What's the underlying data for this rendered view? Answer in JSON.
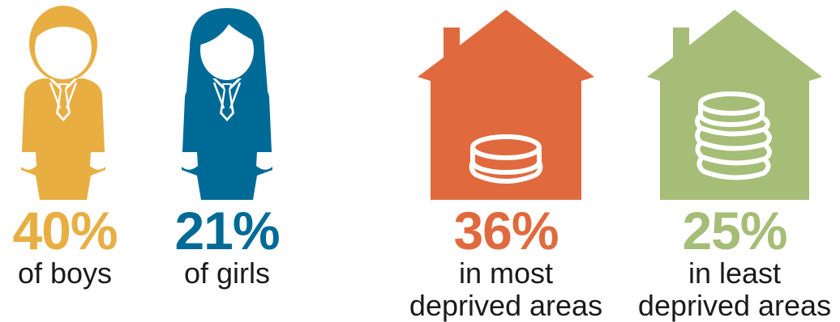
{
  "boys": {
    "percent": "40%",
    "caption": "of boys",
    "icon": "boy-figure-icon",
    "color": "#E8AE42"
  },
  "girls": {
    "percent": "21%",
    "caption": "of girls",
    "icon": "girl-figure-icon",
    "color": "#006A96"
  },
  "most_deprived": {
    "percent": "36%",
    "caption_line1": "in most",
    "caption_line2": "deprived areas",
    "icon": "house-few-coins-icon",
    "color": "#E06A3D"
  },
  "least_deprived": {
    "percent": "25%",
    "caption_line1": "in least",
    "caption_line2": "deprived areas",
    "icon": "house-many-coins-icon",
    "color": "#A5BD76"
  }
}
